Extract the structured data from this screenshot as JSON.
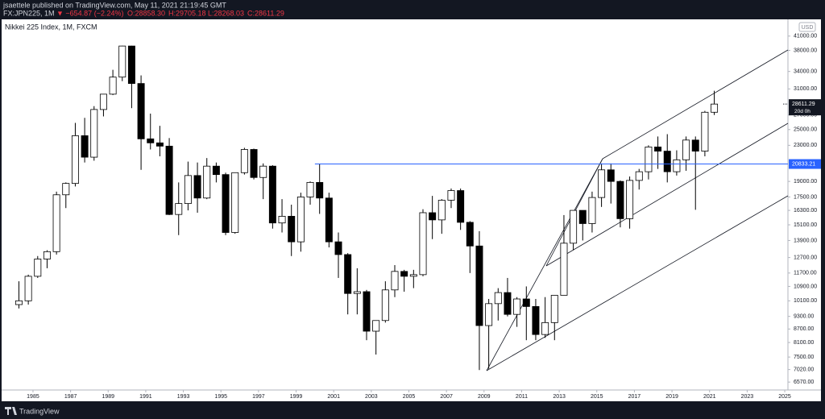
{
  "header": {
    "publisher_line": "jsaettele published on TradingView.com, May 11, 2021 21:19:45 GMT",
    "symbol": "FX:JPN225, 1M",
    "change": "▼ −654.87 (−2.24%)",
    "open": "O:28858.30",
    "high": "H:29705.18",
    "low": "L:28268.03",
    "close": "C:28611.29"
  },
  "footer": {
    "brand": "TradingView"
  },
  "chart_data": {
    "type": "candlestick",
    "title": "Nikkei 225 Index, 1M, FXCM",
    "currency": "USD",
    "log_scale": true,
    "grid": false,
    "up_color": "#ffffff",
    "down_color": "#000000",
    "wick_color": "#000000",
    "x": [
      1984.25,
      1984.75,
      1985.25,
      1985.75,
      1986.25,
      1986.75,
      1987.25,
      1987.75,
      1988.25,
      1988.75,
      1989.25,
      1989.75,
      1990.25,
      1990.75,
      1991.25,
      1991.75,
      1992.25,
      1992.75,
      1993.25,
      1993.75,
      1994.25,
      1994.75,
      1995.25,
      1995.75,
      1996.25,
      1996.75,
      1997.25,
      1997.75,
      1998.25,
      1998.75,
      1999.25,
      1999.75,
      2000.25,
      2000.75,
      2001.25,
      2001.75,
      2002.25,
      2002.75,
      2003.25,
      2003.75,
      2004.25,
      2004.75,
      2005.25,
      2005.75,
      2006.25,
      2006.75,
      2007.25,
      2007.75,
      2008.25,
      2008.75,
      2009.25,
      2009.75,
      2010.25,
      2010.75,
      2011.25,
      2011.75,
      2012.25,
      2012.75,
      2013.25,
      2013.75,
      2014.25,
      2014.75,
      2015.25,
      2015.75,
      2016.25,
      2016.75,
      2017.25,
      2017.75,
      2018.25,
      2018.75,
      2019.25,
      2019.75,
      2020.25,
      2020.75,
      2021.25
    ],
    "open": [
      9900,
      10100,
      11500,
      12600,
      13100,
      17700,
      18800,
      24200,
      21600,
      27800,
      30150,
      33000,
      38900,
      31900,
      23800,
      23300,
      22900,
      15950,
      16900,
      19600,
      17400,
      20600,
      19700,
      14500,
      19900,
      22500,
      19400,
      20600,
      15250,
      15800,
      13800,
      17500,
      18900,
      17400,
      13800,
      12900,
      10500,
      10600,
      8600,
      9100,
      10700,
      11800,
      11500,
      11600,
      16100,
      15500,
      17200,
      18100,
      15300,
      13500,
      8860,
      9950,
      10550,
      9400,
      10200,
      9800,
      8450,
      9000,
      10400,
      13700,
      16300,
      15200,
      17450,
      20200,
      19000,
      15600,
      19100,
      20000,
      22800,
      22300,
      20000,
      21300,
      23650,
      22300,
      27400
    ],
    "high": [
      11200,
      11600,
      12800,
      13200,
      18000,
      18900,
      25900,
      26600,
      28300,
      30200,
      34300,
      38950,
      38950,
      33300,
      27200,
      25500,
      23900,
      18900,
      21100,
      21000,
      21500,
      21000,
      19900,
      19900,
      22700,
      22600,
      20900,
      20700,
      17300,
      16800,
      17900,
      19000,
      20830,
      17900,
      14500,
      13000,
      12000,
      10700,
      8800,
      11200,
      12200,
      11900,
      11900,
      16400,
      17600,
      17300,
      18300,
      18300,
      15400,
      14600,
      10200,
      10800,
      11400,
      10300,
      10900,
      10200,
      10300,
      10400,
      15900,
      16300,
      16300,
      18000,
      20900,
      20900,
      19100,
      19500,
      20300,
      23000,
      24100,
      24400,
      22400,
      24100,
      24100,
      27600,
      30700
    ],
    "low": [
      9700,
      9900,
      11400,
      12000,
      12900,
      16500,
      18500,
      21000,
      21200,
      26800,
      30000,
      32300,
      28000,
      20200,
      22500,
      21700,
      15900,
      14300,
      16300,
      16100,
      17300,
      18900,
      14300,
      14400,
      19700,
      19200,
      17300,
      14800,
      14500,
      12800,
      13100,
      16800,
      16000,
      13400,
      11400,
      9400,
      9400,
      8200,
      7600,
      9000,
      10300,
      10600,
      10800,
      11500,
      14000,
      14400,
      16500,
      14700,
      11700,
      7000,
      7050,
      9100,
      9300,
      8800,
      8200,
      8200,
      8300,
      8200,
      10400,
      13200,
      13900,
      14500,
      16600,
      16900,
      14900,
      14800,
      18200,
      19200,
      20300,
      18900,
      19600,
      20100,
      16350,
      21700,
      27000
    ],
    "close": [
      10100,
      11500,
      12600,
      13100,
      17700,
      18800,
      24200,
      21600,
      27800,
      30150,
      33000,
      38900,
      31900,
      23800,
      23300,
      22900,
      15950,
      16900,
      19600,
      17400,
      20600,
      19700,
      14500,
      19900,
      22500,
      19400,
      20600,
      15250,
      15800,
      13800,
      17500,
      18900,
      17400,
      13800,
      12900,
      10500,
      10600,
      8600,
      9100,
      10700,
      11800,
      11500,
      11600,
      16100,
      15500,
      17200,
      18100,
      15300,
      13500,
      8860,
      9950,
      10550,
      9400,
      10200,
      9800,
      8450,
      9000,
      10400,
      13700,
      16300,
      15200,
      17450,
      20200,
      19000,
      15600,
      19100,
      20000,
      22800,
      22300,
      20000,
      21300,
      23650,
      22300,
      27400,
      28611.29
    ],
    "xlim": [
      1983.33,
      2025.17
    ],
    "xticks": [
      1985,
      1987,
      1989,
      1991,
      1993,
      1995,
      1997,
      1999,
      2001,
      2003,
      2005,
      2007,
      2009,
      2011,
      2013,
      2015,
      2017,
      2019,
      2021,
      2023,
      2025
    ],
    "ylim": [
      6300,
      44800
    ],
    "yticks": [
      {
        "value": 6570,
        "label": "6570.00"
      },
      {
        "value": 7020,
        "label": "7020.00"
      },
      {
        "value": 7500,
        "label": "7500.00"
      },
      {
        "value": 8100,
        "label": "8100.00"
      },
      {
        "value": 8700,
        "label": "8700.00"
      },
      {
        "value": 9300,
        "label": "9300.00"
      },
      {
        "value": 10100,
        "label": "10100.00"
      },
      {
        "value": 10900,
        "label": "10900.00"
      },
      {
        "value": 11700,
        "label": "11700.00"
      },
      {
        "value": 12700,
        "label": "12700.00"
      },
      {
        "value": 13900,
        "label": "13900.00"
      },
      {
        "value": 15100,
        "label": "15100.00"
      },
      {
        "value": 16300,
        "label": "16300.00"
      },
      {
        "value": 17500,
        "label": "17500.00"
      },
      {
        "value": 19000,
        "label": "19000.00"
      },
      {
        "value": 23000,
        "label": "23000.00"
      },
      {
        "value": 25000,
        "label": "25000.00"
      },
      {
        "value": 27000,
        "label": "27000.00"
      },
      {
        "value": 31000,
        "label": "31000.00"
      },
      {
        "value": 34000,
        "label": "34000.00"
      },
      {
        "value": 38000,
        "label": "38000.00"
      },
      {
        "value": 41000,
        "label": "41000.00"
      }
    ],
    "horizontal_line": {
      "value": 20833.21,
      "start": 2000.0,
      "color": "#2962ff"
    },
    "last_price": {
      "value": 28611.29,
      "countdown": "20d 0h"
    }
  }
}
